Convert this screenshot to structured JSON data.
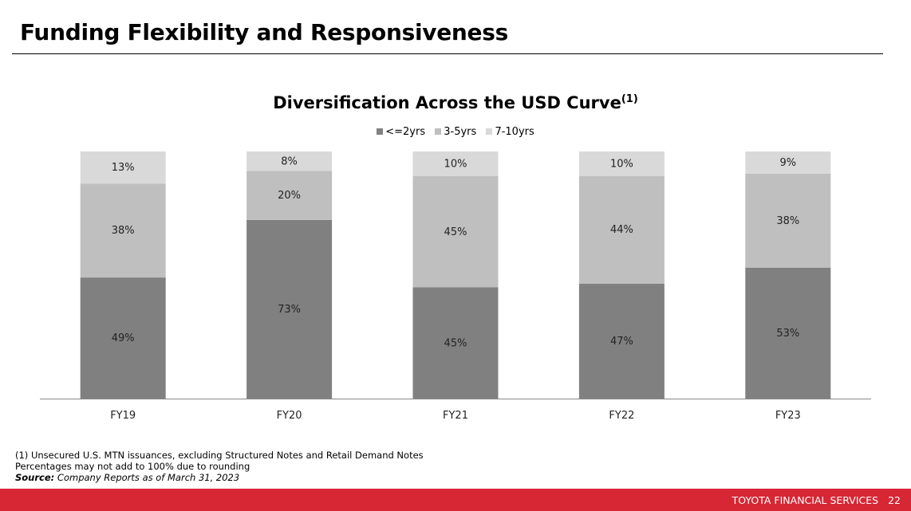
{
  "slide": {
    "title": "Funding Flexibility and Responsiveness",
    "footer_brand": "TOYOTA FINANCIAL SERVICES",
    "page_number": "22"
  },
  "footnotes": {
    "note1": "(1)  Unsecured U.S. MTN issuances, excluding Structured Notes and Retail Demand Notes",
    "note2": "Percentages may not add to 100% due to rounding",
    "source_label": "Source:",
    "source_text": " Company Reports as of March 31, 2023"
  },
  "colors": {
    "footer_red": "#d72634",
    "series_le2": "#808080",
    "series_3to5": "#bfbfbf",
    "series_7to10": "#d9d9d9"
  },
  "chart_data": {
    "type": "bar",
    "stacked": true,
    "title": "Diversification Across the USD Curve",
    "title_superscript": "(1)",
    "xlabel": "",
    "ylabel": "",
    "categories": [
      "FY19",
      "FY20",
      "FY21",
      "FY22",
      "FY23"
    ],
    "series": [
      {
        "name": "<=2yrs",
        "color": "#808080",
        "values": [
          49,
          73,
          45,
          47,
          53
        ]
      },
      {
        "name": "3-5yrs",
        "color": "#bfbfbf",
        "values": [
          38,
          20,
          45,
          44,
          38
        ]
      },
      {
        "name": "7-10yrs",
        "color": "#d9d9d9",
        "values": [
          13,
          8,
          10,
          10,
          9
        ]
      }
    ],
    "value_suffix": "%",
    "ylim": [
      0,
      100
    ],
    "grid": false,
    "legend_position": "top-center"
  }
}
